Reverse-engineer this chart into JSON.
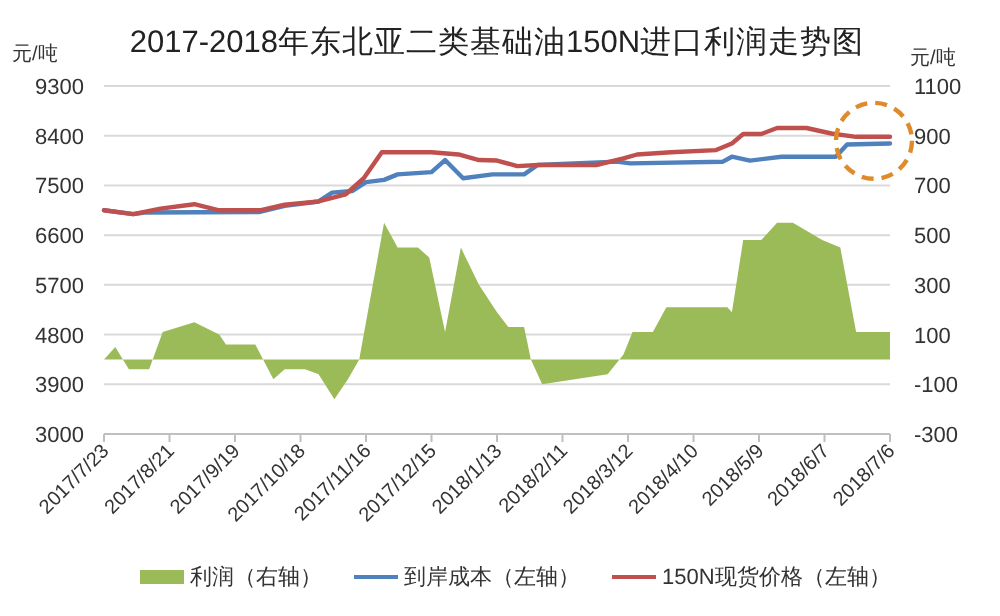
{
  "chart_data": {
    "type": "line",
    "title": "2017-2018年东北亚二类基础油150N进口利润走势图",
    "ylabel": "元/吨",
    "y2label": "元/吨",
    "xlim": [
      "2017-07-23",
      "2018-07-06"
    ],
    "xticks": [
      {
        "value": "2017-07-23",
        "label": "2017/7/23"
      },
      {
        "value": "2017-08-21",
        "label": "2017/8/21"
      },
      {
        "value": "2017-09-19",
        "label": "2017/9/19"
      },
      {
        "value": "2017-10-18",
        "label": "2017/10/18"
      },
      {
        "value": "2017-11-16",
        "label": "2017/11/16"
      },
      {
        "value": "2017-12-15",
        "label": "2017/12/15"
      },
      {
        "value": "2018-01-13",
        "label": "2018/1/13"
      },
      {
        "value": "2018-02-11",
        "label": "2018/2/11"
      },
      {
        "value": "2018-03-12",
        "label": "2018/3/12"
      },
      {
        "value": "2018-04-10",
        "label": "2018/4/10"
      },
      {
        "value": "2018-05-09",
        "label": "2018/5/9"
      },
      {
        "value": "2018-06-07",
        "label": "2018/6/7"
      },
      {
        "value": "2018-07-06",
        "label": "2018/7/6"
      }
    ],
    "ylim": [
      3000,
      9300
    ],
    "yticks": [
      3000,
      3900,
      4800,
      5700,
      6600,
      7500,
      8400,
      9300
    ],
    "y2lim": [
      -300,
      1100
    ],
    "y2ticks": [
      -300,
      -100,
      100,
      300,
      500,
      700,
      900,
      1100
    ],
    "grid": "y",
    "legend": "bottom",
    "series": [
      {
        "name": "利润（右轴）",
        "type": "area",
        "axis": "y2",
        "color": "#9bbb59",
        "x": [
          "2017-07-23",
          "2017-07-28",
          "2017-08-03",
          "2017-08-12",
          "2017-08-18",
          "2017-09-01",
          "2017-09-12",
          "2017-09-15",
          "2017-09-28",
          "2017-10-06",
          "2017-10-11",
          "2017-10-20",
          "2017-10-26",
          "2017-11-02",
          "2017-11-08",
          "2017-11-13",
          "2017-11-24",
          "2017-11-30",
          "2017-12-09",
          "2017-12-14",
          "2017-12-21",
          "2017-12-28",
          "2018-01-05",
          "2018-01-13",
          "2018-01-18",
          "2018-01-25",
          "2018-01-28",
          "2018-02-02",
          "2018-03-03",
          "2018-03-10",
          "2018-03-14",
          "2018-03-23",
          "2018-03-29",
          "2018-04-25",
          "2018-04-27",
          "2018-05-02",
          "2018-05-10",
          "2018-05-17",
          "2018-05-24",
          "2018-06-06",
          "2018-06-14",
          "2018-06-21",
          "2018-07-06"
        ],
        "values": [
          0,
          50,
          -40,
          -40,
          110,
          150,
          100,
          60,
          60,
          -80,
          -40,
          -40,
          -60,
          -160,
          -80,
          0,
          550,
          450,
          450,
          410,
          110,
          450,
          300,
          190,
          130,
          130,
          0,
          -100,
          -60,
          20,
          110,
          110,
          210,
          210,
          190,
          480,
          480,
          550,
          550,
          480,
          450,
          110,
          110
        ]
      },
      {
        "name": "到岸成本（左轴）",
        "color": "#4f81bd",
        "x": [
          "2017-07-23",
          "2017-08-05",
          "2017-08-10",
          "2017-09-30",
          "2017-10-11",
          "2017-10-26",
          "2017-11-01",
          "2017-11-10",
          "2017-11-16",
          "2017-11-24",
          "2017-11-30",
          "2017-12-15",
          "2017-12-21",
          "2017-12-29",
          "2018-01-11",
          "2018-01-25",
          "2018-01-31",
          "2018-03-07",
          "2018-03-13",
          "2018-04-23",
          "2018-04-27",
          "2018-05-05",
          "2018-05-19",
          "2018-06-12",
          "2018-06-17",
          "2018-07-06"
        ],
        "values": [
          7050,
          6980,
          7010,
          7020,
          7130,
          7210,
          7370,
          7400,
          7560,
          7600,
          7700,
          7740,
          7960,
          7630,
          7700,
          7700,
          7870,
          7930,
          7900,
          7930,
          8020,
          7950,
          8020,
          8020,
          8240,
          8260
        ]
      },
      {
        "name": "150N现货价格（左轴）",
        "color": "#c0504d",
        "x": [
          "2017-07-23",
          "2017-08-05",
          "2017-08-17",
          "2017-09-01",
          "2017-09-12",
          "2017-09-30",
          "2017-10-11",
          "2017-10-26",
          "2017-11-07",
          "2017-11-15",
          "2017-11-23",
          "2017-12-15",
          "2017-12-27",
          "2018-01-05",
          "2018-01-13",
          "2018-01-22",
          "2018-01-31",
          "2018-02-26",
          "2018-03-10",
          "2018-03-16",
          "2018-03-31",
          "2018-04-20",
          "2018-04-27",
          "2018-05-02",
          "2018-05-10",
          "2018-05-17",
          "2018-05-30",
          "2018-06-10",
          "2018-06-21",
          "2018-07-06"
        ],
        "values": [
          7050,
          6980,
          7080,
          7160,
          7050,
          7050,
          7150,
          7210,
          7340,
          7630,
          8100,
          8100,
          8060,
          7960,
          7950,
          7850,
          7870,
          7870,
          7990,
          8060,
          8100,
          8140,
          8260,
          8430,
          8430,
          8540,
          8540,
          8440,
          8380,
          8380
        ]
      }
    ]
  }
}
